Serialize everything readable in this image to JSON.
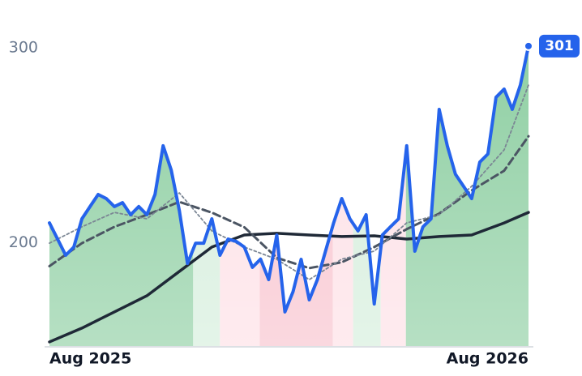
{
  "chart_data": {
    "type": "line",
    "xlim": [
      0,
      59
    ],
    "xticks": [
      {
        "value": 0,
        "label": "Aug 2025"
      },
      {
        "value": 59,
        "label": "Aug 2026"
      }
    ],
    "ylim": [
      147,
      308
    ],
    "yticks": [
      200,
      300
    ],
    "grid": false,
    "regions": [
      {
        "from": 0,
        "to": 17.7,
        "color": "#8fcfa3"
      },
      {
        "from": 17.7,
        "to": 21,
        "color": "#d5eedc"
      },
      {
        "from": 21,
        "to": 25.9,
        "color": "#fde0e6"
      },
      {
        "from": 25.9,
        "to": 34.9,
        "color": "#f8c3ce"
      },
      {
        "from": 34.9,
        "to": 37.4,
        "color": "#fde0e6"
      },
      {
        "from": 37.4,
        "to": 40.8,
        "color": "#d5eedc"
      },
      {
        "from": 40.8,
        "to": 43.9,
        "color": "#fde0e6"
      },
      {
        "from": 43.9,
        "to": 59,
        "color": "#8fcfa3"
      }
    ],
    "series": [
      {
        "color": "#2563eb",
        "style": "solid",
        "width": 4,
        "x": [
          0,
          1,
          2,
          3,
          4,
          5,
          6,
          7,
          8,
          9,
          10,
          11,
          12,
          13,
          14,
          15,
          16,
          17,
          18,
          19,
          20,
          21,
          22,
          23,
          24,
          25,
          26,
          27,
          28,
          29,
          30,
          31,
          32,
          33,
          34,
          35,
          36,
          37,
          38,
          39,
          40,
          41,
          42,
          43,
          44,
          45,
          46,
          47,
          48,
          49,
          50,
          51,
          52,
          53,
          54,
          55,
          56,
          57,
          58,
          59
        ],
        "values": [
          210.2,
          201.9,
          193.6,
          197.8,
          212.3,
          218.6,
          224.8,
          222.7,
          218.6,
          220.6,
          214.4,
          218.6,
          214.4,
          224.8,
          249.8,
          237.3,
          216.5,
          189.4,
          199.8,
          199.8,
          212.3,
          193.6,
          201.9,
          200.7,
          197.8,
          187.4,
          191.6,
          181.1,
          204.0,
          164.5,
          174.9,
          191.5,
          170.7,
          181.1,
          195.7,
          210.2,
          222.7,
          212.3,
          206.1,
          214.4,
          168.6,
          204.0,
          208.2,
          212.3,
          249.8,
          195.7,
          208.2,
          212.3,
          268.5,
          249.8,
          235.2,
          229.0,
          222.7,
          241.4,
          245.6,
          274.7,
          278.9,
          268.5,
          281.0,
          301
        ]
      },
      {
        "color": "#7b8694",
        "style": "dotted",
        "width": 1.8,
        "x": [
          0,
          4,
          8,
          12,
          16,
          20,
          24,
          28,
          32,
          36,
          40,
          44,
          48,
          52,
          56,
          59
        ],
        "values": [
          199.8,
          208.2,
          215.6,
          212.3,
          225.6,
          206.1,
          197.8,
          191.5,
          181.1,
          191.6,
          195.7,
          210.2,
          214.4,
          229.0,
          247.7,
          281.0
        ]
      },
      {
        "color": "#4b5563",
        "style": "dashed",
        "width": 3,
        "x": [
          0,
          4,
          8,
          12,
          16,
          20,
          24,
          28,
          32,
          36,
          40,
          44,
          48,
          52,
          56,
          59
        ],
        "values": [
          188.0,
          199.8,
          208.2,
          214.4,
          221.0,
          215.5,
          208.0,
          192.3,
          187.0,
          190.0,
          197.8,
          207.0,
          215.0,
          226.9,
          237.0,
          254.7
        ]
      },
      {
        "color": "#1f2937",
        "style": "solid",
        "width": 3.5,
        "x": [
          0,
          4,
          8,
          12,
          16,
          20,
          24,
          28,
          32,
          36,
          40,
          44,
          48,
          52,
          56,
          59
        ],
        "values": [
          149.1,
          156.2,
          164.5,
          172.8,
          185.3,
          197.8,
          204.0,
          204.9,
          204.0,
          203.2,
          203.6,
          201.9,
          203.2,
          204.0,
          210.2,
          215.6
        ]
      }
    ]
  }
}
